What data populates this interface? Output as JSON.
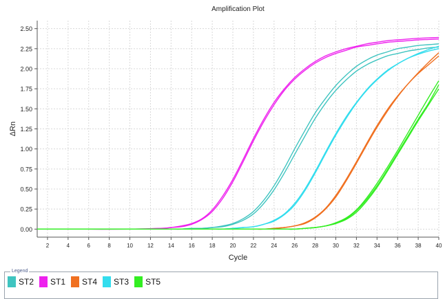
{
  "chart_data": {
    "type": "line",
    "title": "Amplification Plot",
    "xlabel": "Cycle",
    "ylabel": "ΔRn",
    "xlim": [
      1,
      40
    ],
    "ylim": [
      -0.1,
      2.6
    ],
    "xticks": [
      2,
      4,
      6,
      8,
      10,
      12,
      14,
      16,
      18,
      20,
      22,
      24,
      26,
      28,
      30,
      32,
      34,
      36,
      38,
      40
    ],
    "yticks": [
      "0.00",
      "0.25",
      "0.50",
      "0.75",
      "1.00",
      "1.25",
      "1.50",
      "1.75",
      "2.00",
      "2.25",
      "2.50"
    ],
    "grid": true,
    "legend_position": "bottom",
    "legend_title": "Legend",
    "x": [
      1,
      5,
      10,
      13,
      14,
      15,
      16,
      17,
      18,
      19,
      20,
      21,
      22,
      23,
      24,
      25,
      26,
      27,
      28,
      29,
      30,
      31,
      32,
      33,
      34,
      35,
      36,
      37,
      38,
      39,
      40
    ],
    "series": [
      {
        "name": "ST2",
        "color": "#3fc4c0",
        "replicates": [
          [
            0,
            0,
            0,
            0,
            0,
            0,
            0.01,
            0.01,
            0.02,
            0.04,
            0.07,
            0.13,
            0.22,
            0.36,
            0.54,
            0.76,
            1.0,
            1.23,
            1.45,
            1.63,
            1.79,
            1.92,
            2.03,
            2.11,
            2.17,
            2.21,
            2.25,
            2.27,
            2.29,
            2.3,
            2.31
          ],
          [
            0,
            0,
            0,
            0,
            0,
            0,
            0.01,
            0.01,
            0.02,
            0.03,
            0.06,
            0.11,
            0.19,
            0.32,
            0.49,
            0.7,
            0.93,
            1.16,
            1.38,
            1.57,
            1.73,
            1.86,
            1.97,
            2.05,
            2.11,
            2.16,
            2.19,
            2.22,
            2.24,
            2.26,
            2.27
          ]
        ]
      },
      {
        "name": "ST1",
        "color": "#ee22ee",
        "replicates": [
          [
            0,
            0,
            0,
            0.01,
            0.02,
            0.04,
            0.07,
            0.13,
            0.24,
            0.41,
            0.62,
            0.87,
            1.13,
            1.37,
            1.58,
            1.75,
            1.89,
            2.0,
            2.09,
            2.16,
            2.21,
            2.25,
            2.28,
            2.31,
            2.33,
            2.35,
            2.36,
            2.37,
            2.38,
            2.385,
            2.39
          ],
          [
            0,
            0,
            0,
            0.01,
            0.02,
            0.03,
            0.06,
            0.12,
            0.22,
            0.38,
            0.59,
            0.84,
            1.1,
            1.34,
            1.55,
            1.73,
            1.87,
            1.98,
            2.07,
            2.14,
            2.19,
            2.23,
            2.27,
            2.29,
            2.31,
            2.33,
            2.34,
            2.35,
            2.36,
            2.365,
            2.37
          ]
        ]
      },
      {
        "name": "ST4",
        "color": "#f07020",
        "replicates": [
          [
            0,
            0,
            0,
            0,
            0,
            0,
            0,
            0,
            0,
            0,
            0,
            0,
            0,
            0,
            0.01,
            0.02,
            0.04,
            0.08,
            0.15,
            0.26,
            0.42,
            0.62,
            0.84,
            1.07,
            1.29,
            1.49,
            1.66,
            1.81,
            1.94,
            2.05,
            2.16
          ],
          [
            0,
            0,
            0,
            0,
            0,
            0,
            0,
            0,
            0,
            0,
            0,
            0,
            0,
            0,
            0.01,
            0.02,
            0.04,
            0.07,
            0.14,
            0.25,
            0.4,
            0.6,
            0.82,
            1.05,
            1.27,
            1.47,
            1.65,
            1.81,
            1.95,
            2.08,
            2.2
          ]
        ]
      },
      {
        "name": "ST3",
        "color": "#33ddee",
        "replicates": [
          [
            0,
            0,
            0,
            0,
            0,
            0,
            0,
            0,
            0,
            0,
            0.01,
            0.02,
            0.03,
            0.06,
            0.11,
            0.19,
            0.32,
            0.5,
            0.72,
            0.96,
            1.19,
            1.4,
            1.58,
            1.74,
            1.87,
            1.98,
            2.06,
            2.13,
            2.18,
            2.22,
            2.25
          ],
          [
            0,
            0,
            0,
            0,
            0,
            0,
            0,
            0,
            0,
            0,
            0.01,
            0.02,
            0.03,
            0.06,
            0.1,
            0.18,
            0.3,
            0.48,
            0.7,
            0.94,
            1.17,
            1.38,
            1.57,
            1.73,
            1.86,
            1.97,
            2.06,
            2.13,
            2.19,
            2.24,
            2.28
          ]
        ]
      },
      {
        "name": "ST5",
        "color": "#33ee22",
        "replicates": [
          [
            0,
            0,
            0,
            0,
            0,
            0,
            0,
            0,
            0,
            0,
            0,
            0,
            0,
            0,
            0,
            0,
            0,
            0.01,
            0.02,
            0.04,
            0.07,
            0.13,
            0.23,
            0.37,
            0.54,
            0.74,
            0.95,
            1.16,
            1.37,
            1.57,
            1.8
          ],
          [
            0,
            0,
            0,
            0,
            0,
            0,
            0,
            0,
            0,
            0,
            0,
            0,
            0,
            0,
            0,
            0,
            0,
            0.01,
            0.02,
            0.04,
            0.07,
            0.12,
            0.21,
            0.35,
            0.52,
            0.72,
            0.93,
            1.14,
            1.35,
            1.55,
            1.75
          ],
          [
            0,
            0,
            0,
            0,
            0,
            0,
            0,
            0,
            0,
            0,
            0,
            0,
            0,
            0,
            0,
            0,
            0,
            0.01,
            0.02,
            0.04,
            0.08,
            0.14,
            0.24,
            0.39,
            0.57,
            0.77,
            0.98,
            1.2,
            1.42,
            1.64,
            1.85
          ]
        ]
      }
    ]
  }
}
